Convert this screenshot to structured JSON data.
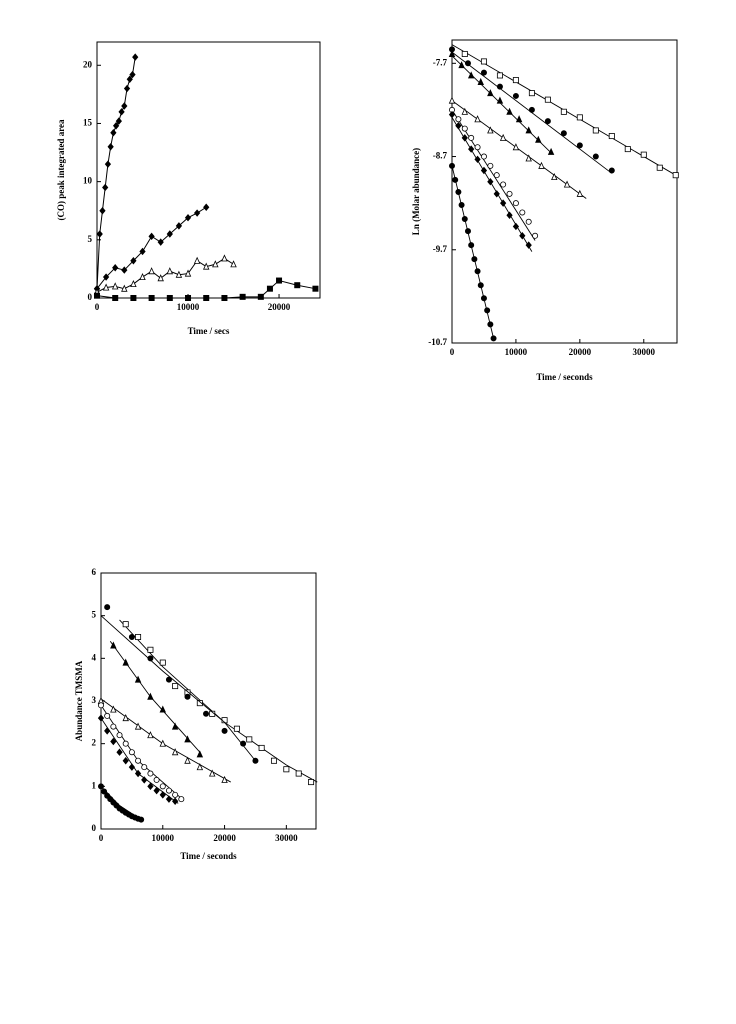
{
  "chart_data": [
    {
      "type": "scatter",
      "xlabel": "Time / secs",
      "ylabel": "(CO) peak integrated area",
      "xlim": [
        0,
        24500
      ],
      "ylim": [
        0,
        22
      ],
      "xticks": [
        0,
        10000,
        20000
      ],
      "yticks": [
        0,
        5,
        10,
        15,
        20
      ],
      "connect": true,
      "series": [
        {
          "color": "#000",
          "marker": "diamond-filled",
          "x": [
            0,
            300,
            600,
            900,
            1200,
            1500,
            1800,
            2100,
            2400,
            2700,
            3000,
            3300,
            3600,
            3900,
            4200
          ],
          "values": [
            0.8,
            5.5,
            7.5,
            9.5,
            11.5,
            13,
            14.2,
            14.8,
            15.2,
            16,
            16.5,
            18,
            18.8,
            19.2,
            20.7
          ]
        },
        {
          "color": "#000",
          "marker": "diamond-filled",
          "x": [
            0,
            1000,
            2000,
            3000,
            4000,
            5000,
            6000,
            7000,
            8000,
            9000,
            10000,
            11000,
            12000
          ],
          "values": [
            0.8,
            1.8,
            2.6,
            2.4,
            3.2,
            4,
            5.3,
            4.8,
            5.5,
            6.2,
            6.9,
            7.3,
            7.8
          ]
        },
        {
          "color": "#000",
          "marker": "triangle-open",
          "x": [
            0,
            1000,
            2000,
            3000,
            4000,
            5000,
            6000,
            7000,
            8000,
            9000,
            10000,
            11000,
            12000,
            13000,
            14000,
            15000
          ],
          "values": [
            0.5,
            0.9,
            1,
            0.8,
            1.2,
            1.8,
            2.3,
            1.7,
            2.3,
            2.0,
            2.1,
            3.2,
            2.7,
            2.9,
            3.4,
            2.9
          ]
        },
        {
          "color": "#000",
          "marker": "square-filled",
          "x": [
            0,
            2000,
            4000,
            6000,
            8000,
            10000,
            12000,
            14000,
            16000,
            18000,
            19000,
            20000,
            22000,
            24000
          ],
          "values": [
            0.2,
            0,
            0,
            0,
            0,
            0,
            0,
            0,
            0.1,
            0.1,
            0.8,
            1.5,
            1.1,
            0.8
          ]
        }
      ]
    },
    {
      "type": "scatter",
      "xlabel": "Time / seconds",
      "ylabel": "Ln (Molar abundance)",
      "xlim": [
        0,
        35200
      ],
      "ylim": [
        -10.7,
        -7.45
      ],
      "xticks": [
        0,
        10000,
        20000,
        30000
      ],
      "yticks": [
        -7.7,
        -8.7,
        -9.7,
        -10.7
      ],
      "connect": false,
      "series": [
        {
          "color": "#000",
          "marker": "square-open",
          "x": [
            2000,
            5000,
            7500,
            10000,
            12500,
            15000,
            17500,
            20000,
            22500,
            25000,
            27500,
            30000,
            32500,
            35000
          ],
          "values": [
            -7.6,
            -7.68,
            -7.83,
            -7.88,
            -8.02,
            -8.09,
            -8.22,
            -8.28,
            -8.42,
            -8.48,
            -8.62,
            -8.68,
            -8.82,
            -8.9
          ],
          "fit_x": [
            0,
            35000
          ],
          "fit_values": [
            -7.5,
            -8.9
          ]
        },
        {
          "color": "#000",
          "marker": "circle-filled",
          "x": [
            0,
            2500,
            5000,
            7500,
            10000,
            12500,
            15000,
            17500,
            20000,
            22500,
            25000
          ],
          "values": [
            -7.55,
            -7.7,
            -7.8,
            -7.95,
            -8.05,
            -8.2,
            -8.32,
            -8.45,
            -8.58,
            -8.7,
            -8.85
          ],
          "fit_x": [
            0,
            25000
          ],
          "fit_values": [
            -7.58,
            -8.88
          ]
        },
        {
          "color": "#000",
          "marker": "triangle-filled",
          "x": [
            0,
            1500,
            3000,
            4500,
            6000,
            7500,
            9000,
            10500,
            12000,
            13500,
            15500
          ],
          "values": [
            -7.6,
            -7.72,
            -7.83,
            -7.9,
            -8.02,
            -8.1,
            -8.22,
            -8.3,
            -8.42,
            -8.52,
            -8.65
          ],
          "fit_x": [
            0,
            15500
          ],
          "fit_values": [
            -7.62,
            -8.66
          ]
        },
        {
          "color": "#000",
          "marker": "triangle-open",
          "x": [
            0,
            2000,
            4000,
            6000,
            8000,
            10000,
            12000,
            14000,
            16000,
            18000,
            20000
          ],
          "values": [
            -8.1,
            -8.22,
            -8.3,
            -8.42,
            -8.5,
            -8.6,
            -8.72,
            -8.8,
            -8.92,
            -9.0,
            -9.1
          ],
          "fit_x": [
            0,
            21000
          ],
          "fit_values": [
            -8.1,
            -9.15
          ]
        },
        {
          "color": "#000",
          "marker": "circle-open",
          "x": [
            0,
            1000,
            2000,
            3000,
            4000,
            5000,
            6000,
            7000,
            8000,
            9000,
            10000,
            11000,
            12000,
            13000
          ],
          "values": [
            -8.2,
            -8.3,
            -8.4,
            -8.5,
            -8.6,
            -8.7,
            -8.8,
            -8.9,
            -9.0,
            -9.1,
            -9.2,
            -9.3,
            -9.4,
            -9.55
          ],
          "fit_x": [
            0,
            13000
          ],
          "fit_values": [
            -8.2,
            -9.6
          ]
        },
        {
          "color": "#000",
          "marker": "diamond-filled",
          "x": [
            0,
            1000,
            2000,
            3000,
            4000,
            5000,
            6000,
            7000,
            8000,
            9000,
            10000,
            11000,
            12000
          ],
          "values": [
            -8.25,
            -8.37,
            -8.5,
            -8.62,
            -8.73,
            -8.85,
            -8.97,
            -9.1,
            -9.2,
            -9.33,
            -9.45,
            -9.55,
            -9.65
          ],
          "fit_x": [
            0,
            12500
          ],
          "fit_values": [
            -8.28,
            -9.72
          ]
        },
        {
          "color": "#000",
          "marker": "circle-filled",
          "x": [
            0,
            500,
            1000,
            1500,
            2000,
            2500,
            3000,
            3500,
            4000,
            4500,
            5000,
            5500,
            6000,
            6500
          ],
          "values": [
            -8.8,
            -8.95,
            -9.08,
            -9.22,
            -9.37,
            -9.5,
            -9.65,
            -9.8,
            -9.93,
            -10.08,
            -10.22,
            -10.35,
            -10.5,
            -10.65
          ],
          "fit_x": [
            0,
            6500
          ],
          "fit_values": [
            -8.8,
            -10.65
          ]
        }
      ]
    },
    {
      "type": "scatter",
      "xlabel": "Time / seconds",
      "ylabel": "Abundance TMSMA",
      "xlim": [
        0,
        34800
      ],
      "ylim": [
        0,
        6
      ],
      "xticks": [
        0,
        10000,
        20000,
        30000
      ],
      "yticks": [
        0,
        1,
        2,
        3,
        4,
        5,
        6
      ],
      "connect": false,
      "series": [
        {
          "color": "#000",
          "marker": "square-open",
          "x": [
            4000,
            6000,
            8000,
            10000,
            12000,
            14000,
            16000,
            18000,
            20000,
            22000,
            24000,
            26000,
            28000,
            30000,
            32000,
            34000
          ],
          "values": [
            4.8,
            4.5,
            4.2,
            3.9,
            3.35,
            3.2,
            2.95,
            2.7,
            2.55,
            2.35,
            2.1,
            1.9,
            1.6,
            1.4,
            1.3,
            1.1
          ],
          "fit_x": [
            3000,
            10000,
            20000,
            30000,
            35000
          ],
          "fit_values": [
            4.9,
            3.8,
            2.5,
            1.5,
            1.1
          ]
        },
        {
          "color": "#000",
          "marker": "circle-filled",
          "x": [
            1000,
            5000,
            8000,
            11000,
            14000,
            17000,
            20000,
            23000,
            25000
          ],
          "values": [
            5.2,
            4.5,
            4.0,
            3.5,
            3.1,
            2.7,
            2.3,
            2.0,
            1.6
          ],
          "fit_x": [
            0,
            10000,
            20000,
            25000
          ],
          "fit_values": [
            5.0,
            3.7,
            2.5,
            1.6
          ]
        },
        {
          "color": "#000",
          "marker": "triangle-filled",
          "x": [
            2000,
            4000,
            6000,
            8000,
            10000,
            12000,
            14000,
            16000
          ],
          "values": [
            4.3,
            3.9,
            3.5,
            3.1,
            2.8,
            2.4,
            2.1,
            1.75
          ],
          "fit_x": [
            1500,
            8000,
            16000
          ],
          "fit_values": [
            4.4,
            3.1,
            1.8
          ]
        },
        {
          "color": "#000",
          "marker": "triangle-open",
          "x": [
            0,
            2000,
            4000,
            6000,
            8000,
            10000,
            12000,
            14000,
            16000,
            18000,
            20000
          ],
          "values": [
            3.0,
            2.8,
            2.6,
            2.4,
            2.2,
            2.0,
            1.8,
            1.6,
            1.45,
            1.3,
            1.15
          ],
          "fit_x": [
            0,
            10000,
            21000
          ],
          "fit_values": [
            3.05,
            2.0,
            1.1
          ]
        },
        {
          "color": "#000",
          "marker": "circle-open",
          "x": [
            0,
            1000,
            2000,
            3000,
            4000,
            5000,
            6000,
            7000,
            8000,
            9000,
            10000,
            11000,
            12000,
            13000
          ],
          "values": [
            2.9,
            2.65,
            2.4,
            2.2,
            2.0,
            1.8,
            1.6,
            1.45,
            1.3,
            1.15,
            1.0,
            0.9,
            0.8,
            0.7
          ],
          "fit_x": [
            0,
            6000,
            13000
          ],
          "fit_values": [
            2.9,
            1.6,
            0.72
          ]
        },
        {
          "color": "#000",
          "marker": "diamond-filled",
          "x": [
            0,
            1000,
            2000,
            3000,
            4000,
            5000,
            6000,
            7000,
            8000,
            9000,
            10000,
            11000,
            12000
          ],
          "values": [
            2.6,
            2.3,
            2.05,
            1.8,
            1.6,
            1.45,
            1.3,
            1.15,
            1.0,
            0.9,
            0.8,
            0.7,
            0.65
          ],
          "fit_x": [
            0,
            6000,
            12500
          ],
          "fit_values": [
            2.6,
            1.3,
            0.6
          ]
        },
        {
          "color": "#000",
          "marker": "circle-filled",
          "x": [
            0,
            500,
            1000,
            1500,
            2000,
            2500,
            3000,
            3500,
            4000,
            4500,
            5000,
            5500,
            6000,
            6500
          ],
          "values": [
            1.0,
            0.88,
            0.78,
            0.7,
            0.62,
            0.55,
            0.48,
            0.43,
            0.38,
            0.34,
            0.3,
            0.27,
            0.24,
            0.22
          ],
          "fit_x": [
            0,
            3000,
            6500
          ],
          "fit_values": [
            1.0,
            0.55,
            0.22
          ]
        }
      ]
    }
  ]
}
